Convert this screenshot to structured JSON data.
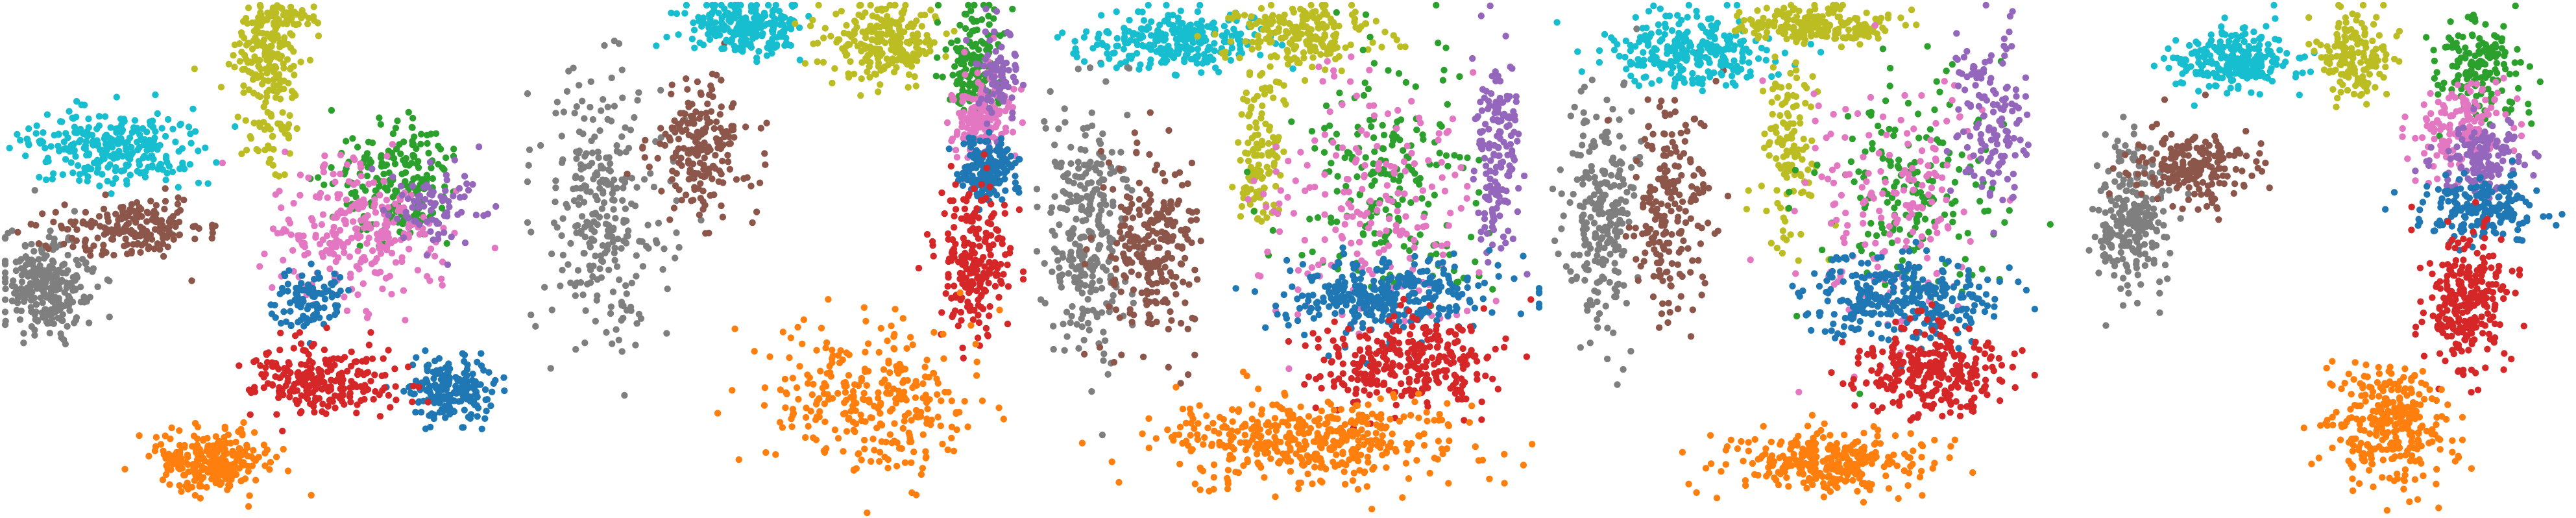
{
  "chart_data": [
    {
      "type": "scatter",
      "title": "",
      "xlabel": "",
      "ylabel": "",
      "axes_visible": false,
      "grid": false,
      "legend": "none",
      "series": [
        {
          "color": "#bcbd22",
          "blobs": [
            [
              0.52,
              0.1,
              0.06,
              0.09,
              160
            ],
            [
              0.56,
              0.02,
              0.06,
              0.02,
              50
            ],
            [
              0.52,
              0.25,
              0.04,
              0.06,
              50
            ]
          ]
        },
        {
          "color": "#17becf",
          "blobs": [
            [
              0.22,
              0.28,
              0.14,
              0.06,
              280
            ]
          ]
        },
        {
          "color": "#7f7f7f",
          "blobs": [
            [
              0.08,
              0.55,
              0.07,
              0.08,
              260
            ]
          ]
        },
        {
          "color": "#8c564b",
          "blobs": [
            [
              0.25,
              0.44,
              0.12,
              0.05,
              200
            ]
          ]
        },
        {
          "color": "#2ca02c",
          "blobs": [
            [
              0.78,
              0.35,
              0.11,
              0.1,
              200
            ]
          ]
        },
        {
          "color": "#e377c2",
          "blobs": [
            [
              0.7,
              0.45,
              0.14,
              0.11,
              260
            ]
          ]
        },
        {
          "color": "#9467bd",
          "blobs": [
            [
              0.85,
              0.4,
              0.07,
              0.07,
              80
            ]
          ]
        },
        {
          "color": "#1f77b4",
          "blobs": [
            [
              0.88,
              0.76,
              0.07,
              0.05,
              200
            ],
            [
              0.6,
              0.58,
              0.06,
              0.05,
              100
            ]
          ]
        },
        {
          "color": "#d62728",
          "blobs": [
            [
              0.63,
              0.74,
              0.12,
              0.06,
              240
            ]
          ]
        },
        {
          "color": "#ff7f0e",
          "blobs": [
            [
              0.41,
              0.9,
              0.09,
              0.05,
              260
            ]
          ]
        }
      ]
    },
    {
      "type": "scatter",
      "title": "",
      "xlabel": "",
      "ylabel": "",
      "axes_visible": false,
      "grid": false,
      "legend": "none",
      "series": [
        {
          "color": "#7f7f7f",
          "blobs": [
            [
              0.15,
              0.4,
              0.11,
              0.22,
              280
            ]
          ]
        },
        {
          "color": "#8c564b",
          "blobs": [
            [
              0.35,
              0.28,
              0.09,
              0.11,
              200
            ]
          ]
        },
        {
          "color": "#17becf",
          "blobs": [
            [
              0.44,
              0.04,
              0.1,
              0.04,
              240
            ]
          ]
        },
        {
          "color": "#bcbd22",
          "blobs": [
            [
              0.72,
              0.07,
              0.09,
              0.06,
              240
            ]
          ]
        },
        {
          "color": "#2ca02c",
          "blobs": [
            [
              0.9,
              0.12,
              0.05,
              0.09,
              160
            ]
          ]
        },
        {
          "color": "#e377c2",
          "blobs": [
            [
              0.92,
              0.22,
              0.05,
              0.08,
              160
            ]
          ]
        },
        {
          "color": "#9467bd",
          "blobs": [
            [
              0.95,
              0.14,
              0.03,
              0.08,
              80
            ]
          ]
        },
        {
          "color": "#1f77b4",
          "blobs": [
            [
              0.93,
              0.32,
              0.05,
              0.05,
              160
            ]
          ]
        },
        {
          "color": "#d62728",
          "blobs": [
            [
              0.9,
              0.5,
              0.06,
              0.12,
              220
            ]
          ]
        },
        {
          "color": "#ff7f0e",
          "blobs": [
            [
              0.7,
              0.78,
              0.18,
              0.12,
              300
            ]
          ]
        }
      ]
    },
    {
      "type": "scatter",
      "title": "",
      "xlabel": "",
      "ylabel": "",
      "axes_visible": false,
      "grid": false,
      "legend": "none",
      "series": [
        {
          "color": "#7f7f7f",
          "blobs": [
            [
              0.1,
              0.45,
              0.07,
              0.2,
              280
            ]
          ]
        },
        {
          "color": "#8c564b",
          "blobs": [
            [
              0.23,
              0.48,
              0.07,
              0.16,
              240
            ]
          ]
        },
        {
          "color": "#17becf",
          "blobs": [
            [
              0.28,
              0.07,
              0.14,
              0.05,
              280
            ]
          ]
        },
        {
          "color": "#bcbd22",
          "blobs": [
            [
              0.52,
              0.06,
              0.12,
              0.05,
              200
            ],
            [
              0.44,
              0.3,
              0.04,
              0.14,
              120
            ]
          ]
        },
        {
          "color": "#2ca02c",
          "blobs": [
            [
              0.7,
              0.35,
              0.16,
              0.2,
              200
            ]
          ]
        },
        {
          "color": "#e377c2",
          "blobs": [
            [
              0.66,
              0.38,
              0.18,
              0.22,
              200
            ]
          ]
        },
        {
          "color": "#9467bd",
          "blobs": [
            [
              0.92,
              0.3,
              0.04,
              0.18,
              160
            ]
          ]
        },
        {
          "color": "#1f77b4",
          "blobs": [
            [
              0.7,
              0.57,
              0.17,
              0.06,
              320
            ]
          ]
        },
        {
          "color": "#d62728",
          "blobs": [
            [
              0.74,
              0.7,
              0.15,
              0.07,
              300
            ]
          ]
        },
        {
          "color": "#ff7f0e",
          "blobs": [
            [
              0.54,
              0.86,
              0.23,
              0.07,
              440
            ]
          ]
        }
      ]
    },
    {
      "type": "scatter",
      "title": "",
      "xlabel": "",
      "ylabel": "",
      "axes_visible": false,
      "grid": false,
      "legend": "none",
      "series": [
        {
          "color": "#7f7f7f",
          "blobs": [
            [
              0.1,
              0.42,
              0.06,
              0.2,
              240
            ]
          ]
        },
        {
          "color": "#8c564b",
          "blobs": [
            [
              0.24,
              0.4,
              0.07,
              0.18,
              200
            ]
          ]
        },
        {
          "color": "#17becf",
          "blobs": [
            [
              0.28,
              0.09,
              0.14,
              0.06,
              260
            ]
          ]
        },
        {
          "color": "#bcbd22",
          "blobs": [
            [
              0.52,
              0.04,
              0.13,
              0.03,
              200
            ],
            [
              0.47,
              0.28,
              0.05,
              0.15,
              120
            ]
          ]
        },
        {
          "color": "#2ca02c",
          "blobs": [
            [
              0.72,
              0.35,
              0.15,
              0.18,
              180
            ]
          ]
        },
        {
          "color": "#e377c2",
          "blobs": [
            [
              0.7,
              0.38,
              0.16,
              0.2,
              180
            ]
          ]
        },
        {
          "color": "#9467bd",
          "blobs": [
            [
              0.88,
              0.22,
              0.06,
              0.14,
              140
            ]
          ]
        },
        {
          "color": "#1f77b4",
          "blobs": [
            [
              0.7,
              0.58,
              0.16,
              0.07,
              300
            ]
          ]
        },
        {
          "color": "#d62728",
          "blobs": [
            [
              0.76,
              0.72,
              0.12,
              0.07,
              280
            ]
          ]
        },
        {
          "color": "#ff7f0e",
          "blobs": [
            [
              0.56,
              0.9,
              0.16,
              0.05,
              300
            ]
          ]
        }
      ]
    },
    {
      "type": "scatter",
      "title": "",
      "xlabel": "",
      "ylabel": "",
      "axes_visible": false,
      "grid": false,
      "legend": "none",
      "series": [
        {
          "color": "#7f7f7f",
          "blobs": [
            [
              0.13,
              0.42,
              0.06,
              0.12,
              240
            ]
          ]
        },
        {
          "color": "#8c564b",
          "blobs": [
            [
              0.25,
              0.32,
              0.09,
              0.06,
              200
            ]
          ]
        },
        {
          "color": "#17becf",
          "blobs": [
            [
              0.33,
              0.11,
              0.1,
              0.05,
              240
            ]
          ]
        },
        {
          "color": "#bcbd22",
          "blobs": [
            [
              0.57,
              0.1,
              0.06,
              0.07,
              160
            ]
          ]
        },
        {
          "color": "#2ca02c",
          "blobs": [
            [
              0.82,
              0.12,
              0.07,
              0.08,
              160
            ]
          ]
        },
        {
          "color": "#e377c2",
          "blobs": [
            [
              0.78,
              0.25,
              0.08,
              0.08,
              160
            ]
          ]
        },
        {
          "color": "#9467bd",
          "blobs": [
            [
              0.83,
              0.3,
              0.08,
              0.06,
              140
            ]
          ]
        },
        {
          "color": "#1f77b4",
          "blobs": [
            [
              0.82,
              0.4,
              0.09,
              0.05,
              180
            ]
          ]
        },
        {
          "color": "#d62728",
          "blobs": [
            [
              0.79,
              0.58,
              0.07,
              0.11,
              260
            ]
          ]
        },
        {
          "color": "#ff7f0e",
          "blobs": [
            [
              0.64,
              0.83,
              0.1,
              0.1,
              300
            ]
          ]
        }
      ]
    }
  ]
}
